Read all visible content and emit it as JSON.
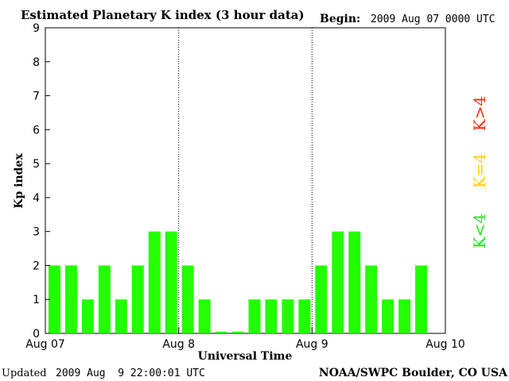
{
  "header": {
    "title": "Estimated Planetary K index (3 hour data)",
    "begin_label": "Begin:",
    "begin_value": "2009 Aug 07 0000 UTC"
  },
  "footer": {
    "updated_label": "Updated",
    "updated_value": "2009 Aug  9 22:00:01 UTC",
    "source": "NOAA/SWPC Boulder, CO USA"
  },
  "legend": {
    "high": {
      "label": "K>4",
      "color": "#ff2a00"
    },
    "mid": {
      "label": "K=4",
      "color": "#ffd000"
    },
    "low": {
      "label": "K<4",
      "color": "#22e61e"
    }
  },
  "chart_data": {
    "type": "bar",
    "title": "Estimated Planetary K index (3 hour data)",
    "xlabel": "Universal Time",
    "ylabel": "Kp index",
    "ylim": [
      0,
      9
    ],
    "yticks": [
      "0",
      "1",
      "2",
      "3",
      "4",
      "5",
      "6",
      "7",
      "8",
      "9"
    ],
    "xticks": [
      "Aug 07",
      "Aug 8",
      "Aug 9",
      "Aug 10"
    ],
    "day_dividers": [
      "Aug 8",
      "Aug 9"
    ],
    "bar_color": "#22ff00",
    "interval_hours": 3,
    "values": [
      2,
      2,
      1,
      2,
      1,
      2,
      3,
      3,
      2,
      1,
      0.05,
      0.05,
      1,
      1,
      1,
      1,
      2,
      3,
      3,
      2,
      1,
      1,
      2
    ],
    "grid": false
  }
}
